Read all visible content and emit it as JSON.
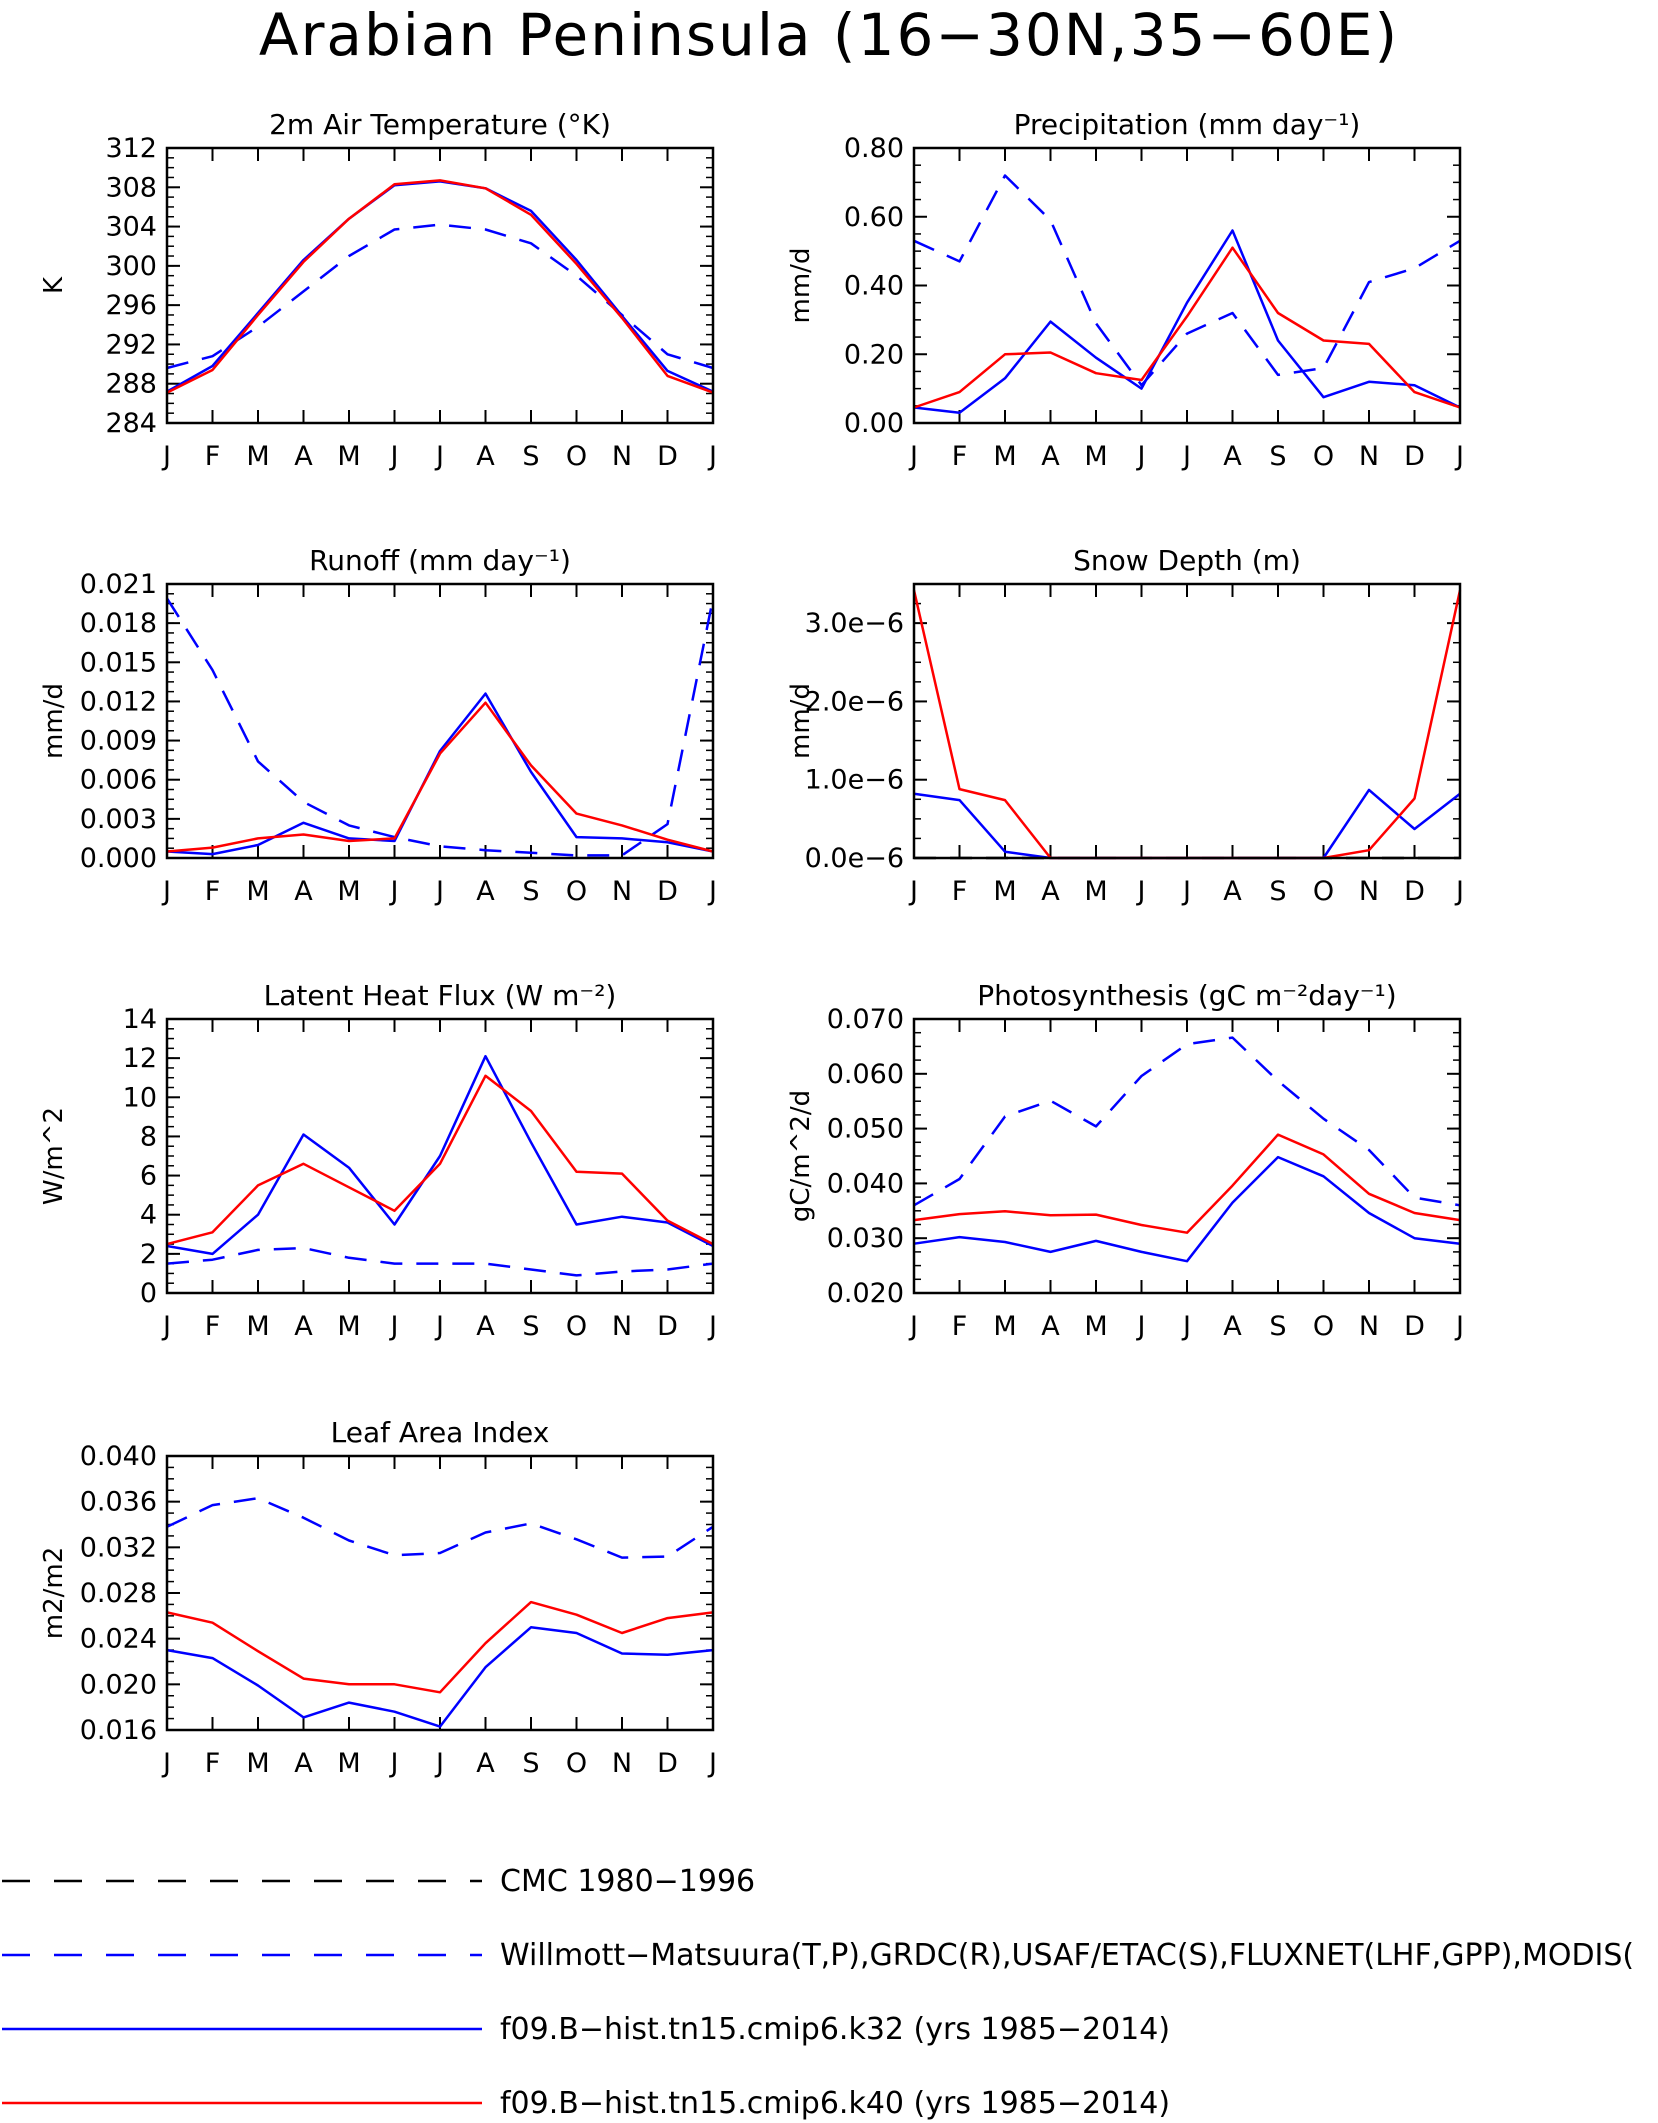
{
  "figure": {
    "title": "Arabian Peninsula (16−30N,35−60E)"
  },
  "colors": {
    "obs_cmc": "#000000",
    "obs_multi": "#0000ff",
    "k32": "#0000ff",
    "k40": "#ff0000"
  },
  "legend": [
    {
      "label": "CMC 1980−1996",
      "color": "#000000",
      "dashed": true
    },
    {
      "label": "Willmott−Matsuura(T,P),GRDC(R),USAF/ETAC(S),FLUXNET(LHF,GPP),MODIS(",
      "color": "#0000ff",
      "dashed": true
    },
    {
      "label": "f09.B−hist.tn15.cmip6.k32 (yrs 1985−2014)",
      "color": "#0000ff",
      "dashed": false
    },
    {
      "label": "f09.B−hist.tn15.cmip6.k40 (yrs 1985−2014)",
      "color": "#ff0000",
      "dashed": false
    }
  ],
  "chart_data": [
    {
      "type": "line",
      "title": "2m Air Temperature (°K)",
      "ylabel": "K",
      "categories": [
        "J",
        "F",
        "M",
        "A",
        "M",
        "J",
        "J",
        "A",
        "S",
        "O",
        "N",
        "D",
        "J"
      ],
      "ylim": [
        284,
        312
      ],
      "yticks": [
        "284",
        "288",
        "292",
        "296",
        "300",
        "304",
        "308",
        "312"
      ],
      "series": [
        {
          "style": "obs_multi",
          "values": [
            289.6,
            290.8,
            293.8,
            297.4,
            301.0,
            303.7,
            304.2,
            303.7,
            302.3,
            299.0,
            295.0,
            291.0,
            289.6
          ]
        },
        {
          "style": "k32",
          "values": [
            287.2,
            289.8,
            295.2,
            300.6,
            304.8,
            308.2,
            308.6,
            307.9,
            305.6,
            300.6,
            294.9,
            289.3,
            287.2
          ]
        },
        {
          "style": "k40",
          "values": [
            287.1,
            289.4,
            295.0,
            300.4,
            304.8,
            308.3,
            308.7,
            307.9,
            305.2,
            300.2,
            294.7,
            288.8,
            287.1
          ]
        }
      ]
    },
    {
      "type": "line",
      "title": "Precipitation (mm day⁻¹)",
      "ylabel": "mm/d",
      "categories": [
        "J",
        "F",
        "M",
        "A",
        "M",
        "J",
        "J",
        "A",
        "S",
        "O",
        "N",
        "D",
        "J"
      ],
      "ylim": [
        0,
        0.8
      ],
      "yticks": [
        "0.00",
        "0.20",
        "0.40",
        "0.60",
        "0.80"
      ],
      "series": [
        {
          "style": "obs_multi",
          "values": [
            0.53,
            0.47,
            0.72,
            0.59,
            0.29,
            0.11,
            0.26,
            0.32,
            0.14,
            0.16,
            0.41,
            0.45,
            0.53
          ]
        },
        {
          "style": "k32",
          "values": [
            0.045,
            0.03,
            0.13,
            0.295,
            0.19,
            0.1,
            0.35,
            0.56,
            0.24,
            0.075,
            0.12,
            0.11,
            0.045
          ]
        },
        {
          "style": "k40",
          "values": [
            0.045,
            0.09,
            0.2,
            0.205,
            0.145,
            0.125,
            0.31,
            0.51,
            0.32,
            0.24,
            0.23,
            0.09,
            0.045
          ]
        }
      ]
    },
    {
      "type": "line",
      "title": "Runoff (mm day⁻¹)",
      "ylabel": "mm/d",
      "categories": [
        "J",
        "F",
        "M",
        "A",
        "M",
        "J",
        "J",
        "A",
        "S",
        "O",
        "N",
        "D",
        "J"
      ],
      "ylim": [
        0,
        0.021
      ],
      "yticks": [
        "0.000",
        "0.003",
        "0.006",
        "0.009",
        "0.012",
        "0.015",
        "0.018",
        "0.021"
      ],
      "series": [
        {
          "style": "obs_multi",
          "values": [
            0.0199,
            0.0144,
            0.0074,
            0.0043,
            0.0025,
            0.0016,
            0.0009,
            0.0006,
            0.0004,
            0.0002,
            0.0002,
            0.0026,
            0.0199
          ]
        },
        {
          "style": "k32",
          "values": [
            0.0005,
            0.0003,
            0.001,
            0.0027,
            0.0015,
            0.0013,
            0.0082,
            0.0126,
            0.0066,
            0.0016,
            0.0015,
            0.0012,
            0.0005
          ]
        },
        {
          "style": "k40",
          "values": [
            0.0005,
            0.0008,
            0.0015,
            0.0018,
            0.0013,
            0.0015,
            0.008,
            0.0119,
            0.0071,
            0.0034,
            0.0025,
            0.0014,
            0.0005
          ]
        }
      ]
    },
    {
      "type": "line",
      "title": "Snow Depth (m)",
      "ylabel": "mm/d",
      "categories": [
        "J",
        "F",
        "M",
        "A",
        "M",
        "J",
        "J",
        "A",
        "S",
        "O",
        "N",
        "D",
        "J"
      ],
      "ylim": [
        0,
        3.5e-06
      ],
      "yticks": [
        {
          "value": 0,
          "label": "0.0e−6"
        },
        {
          "value": 1e-06,
          "label": "1.0e−6"
        },
        {
          "value": 2e-06,
          "label": "2.0e−6"
        },
        {
          "value": 3e-06,
          "label": "3.0e−6"
        }
      ],
      "series": [
        {
          "style": "obs_cmc",
          "values": [
            0,
            0,
            0,
            0,
            0,
            0,
            0,
            0,
            0,
            0,
            0,
            0,
            0
          ]
        },
        {
          "style": "k32",
          "values": [
            8.2e-07,
            7.4e-07,
            8e-08,
            0,
            0,
            0,
            0,
            0,
            0,
            0,
            8.7e-07,
            3.7e-07,
            8.2e-07
          ]
        },
        {
          "style": "k40",
          "values": [
            3.42e-06,
            8.8e-07,
            7.4e-07,
            0,
            0,
            0,
            0,
            0,
            0,
            0,
            1e-07,
            7.6e-07,
            3.42e-06
          ]
        }
      ]
    },
    {
      "type": "line",
      "title": "Latent Heat Flux (W m⁻²)",
      "ylabel": "W/m^2",
      "categories": [
        "J",
        "F",
        "M",
        "A",
        "M",
        "J",
        "J",
        "A",
        "S",
        "O",
        "N",
        "D",
        "J"
      ],
      "ylim": [
        0,
        14
      ],
      "yticks": [
        "0",
        "2",
        "4",
        "6",
        "8",
        "10",
        "12",
        "14"
      ],
      "series": [
        {
          "style": "obs_multi",
          "values": [
            1.5,
            1.7,
            2.2,
            2.3,
            1.8,
            1.5,
            1.5,
            1.5,
            1.2,
            0.9,
            1.1,
            1.2,
            1.5
          ]
        },
        {
          "style": "k32",
          "values": [
            2.4,
            2.0,
            4.0,
            8.1,
            6.4,
            3.5,
            7.0,
            12.1,
            7.7,
            3.5,
            3.9,
            3.6,
            2.4
          ]
        },
        {
          "style": "k40",
          "values": [
            2.5,
            3.1,
            5.5,
            6.6,
            5.4,
            4.2,
            6.6,
            11.1,
            9.3,
            6.2,
            6.1,
            3.7,
            2.5
          ]
        }
      ]
    },
    {
      "type": "line",
      "title": "Photosynthesis (gC m⁻²day⁻¹)",
      "ylabel": "gC/m^2/d",
      "categories": [
        "J",
        "F",
        "M",
        "A",
        "M",
        "J",
        "J",
        "A",
        "S",
        "O",
        "N",
        "D",
        "J"
      ],
      "ylim": [
        0.02,
        0.07
      ],
      "yticks": [
        "0.020",
        "0.030",
        "0.040",
        "0.050",
        "0.060",
        "0.070"
      ],
      "series": [
        {
          "style": "obs_multi",
          "values": [
            0.036,
            0.0408,
            0.0522,
            0.0551,
            0.0504,
            0.0596,
            0.0654,
            0.0666,
            0.0587,
            0.0518,
            0.0461,
            0.0374,
            0.036
          ]
        },
        {
          "style": "k32",
          "values": [
            0.029,
            0.0302,
            0.0293,
            0.0275,
            0.0295,
            0.0275,
            0.0258,
            0.0365,
            0.0448,
            0.0413,
            0.0346,
            0.03,
            0.029
          ]
        },
        {
          "style": "k40",
          "values": [
            0.0333,
            0.0344,
            0.0349,
            0.0342,
            0.0343,
            0.0324,
            0.031,
            0.0396,
            0.0489,
            0.0453,
            0.0381,
            0.0346,
            0.0333
          ]
        }
      ]
    },
    {
      "type": "line",
      "title": "Leaf Area Index",
      "ylabel": "m2/m2",
      "categories": [
        "J",
        "F",
        "M",
        "A",
        "M",
        "J",
        "J",
        "A",
        "S",
        "O",
        "N",
        "D",
        "J"
      ],
      "ylim": [
        0.016,
        0.04
      ],
      "yticks": [
        "0.016",
        "0.020",
        "0.024",
        "0.028",
        "0.032",
        "0.036",
        "0.040"
      ],
      "series": [
        {
          "style": "obs_multi",
          "values": [
            0.0338,
            0.0357,
            0.0363,
            0.0346,
            0.0326,
            0.0313,
            0.0315,
            0.0333,
            0.0341,
            0.0327,
            0.0311,
            0.0312,
            0.0338
          ]
        },
        {
          "style": "k32",
          "values": [
            0.023,
            0.0223,
            0.0199,
            0.0171,
            0.0184,
            0.0176,
            0.0163,
            0.0215,
            0.025,
            0.0245,
            0.0227,
            0.0226,
            0.023
          ]
        },
        {
          "style": "k40",
          "values": [
            0.0263,
            0.0254,
            0.0229,
            0.0205,
            0.02,
            0.02,
            0.0193,
            0.0236,
            0.0272,
            0.0261,
            0.0245,
            0.0258,
            0.0263
          ]
        }
      ]
    }
  ]
}
